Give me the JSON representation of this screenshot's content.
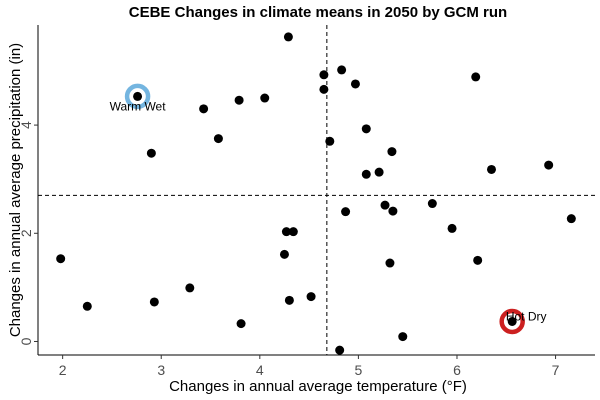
{
  "chart_data": {
    "type": "scatter",
    "title": "CEBE Changes in climate means in 2050 by GCM run",
    "xlabel": "Changes in annual average temperature (°F)",
    "ylabel": "Changes in annual average precipitation (in)",
    "xlim": [
      1.75,
      7.4
    ],
    "ylim": [
      -0.25,
      5.85
    ],
    "xticks": [
      2,
      3,
      4,
      5,
      6,
      7
    ],
    "yticks": [
      0,
      2,
      4
    ],
    "grid": false,
    "ref_lines": {
      "x": 4.68,
      "y": 2.7
    },
    "points": [
      {
        "x": 4.29,
        "y": 5.63
      },
      {
        "x": 4.65,
        "y": 4.93
      },
      {
        "x": 4.65,
        "y": 4.66
      },
      {
        "x": 4.83,
        "y": 5.02
      },
      {
        "x": 4.97,
        "y": 4.76
      },
      {
        "x": 6.19,
        "y": 4.89
      },
      {
        "x": 2.76,
        "y": 4.53
      },
      {
        "x": 3.43,
        "y": 4.3
      },
      {
        "x": 3.79,
        "y": 4.46
      },
      {
        "x": 4.05,
        "y": 4.5
      },
      {
        "x": 3.58,
        "y": 3.75
      },
      {
        "x": 4.71,
        "y": 3.7
      },
      {
        "x": 5.08,
        "y": 3.93
      },
      {
        "x": 2.9,
        "y": 3.48
      },
      {
        "x": 5.34,
        "y": 3.51
      },
      {
        "x": 5.08,
        "y": 3.09
      },
      {
        "x": 5.21,
        "y": 3.13
      },
      {
        "x": 6.35,
        "y": 3.18
      },
      {
        "x": 6.93,
        "y": 3.26
      },
      {
        "x": 4.87,
        "y": 2.4
      },
      {
        "x": 5.27,
        "y": 2.52
      },
      {
        "x": 5.35,
        "y": 2.41
      },
      {
        "x": 5.75,
        "y": 2.55
      },
      {
        "x": 5.95,
        "y": 2.09
      },
      {
        "x": 7.16,
        "y": 2.27
      },
      {
        "x": 4.27,
        "y": 2.03
      },
      {
        "x": 4.34,
        "y": 2.03
      },
      {
        "x": 4.25,
        "y": 1.61
      },
      {
        "x": 1.98,
        "y": 1.53
      },
      {
        "x": 5.32,
        "y": 1.45
      },
      {
        "x": 6.21,
        "y": 1.5
      },
      {
        "x": 3.29,
        "y": 0.99
      },
      {
        "x": 2.25,
        "y": 0.65
      },
      {
        "x": 2.93,
        "y": 0.73
      },
      {
        "x": 4.3,
        "y": 0.76
      },
      {
        "x": 4.52,
        "y": 0.83
      },
      {
        "x": 3.81,
        "y": 0.33
      },
      {
        "x": 5.45,
        "y": 0.09
      },
      {
        "x": 4.81,
        "y": -0.16
      },
      {
        "x": 6.56,
        "y": 0.37
      }
    ],
    "annotations": [
      {
        "label": "Warm Wet",
        "x": 2.76,
        "y": 4.53,
        "color": "#74b5e0"
      },
      {
        "label": "Hot Dry",
        "x": 6.56,
        "y": 0.37,
        "color": "#cc2020"
      }
    ]
  }
}
